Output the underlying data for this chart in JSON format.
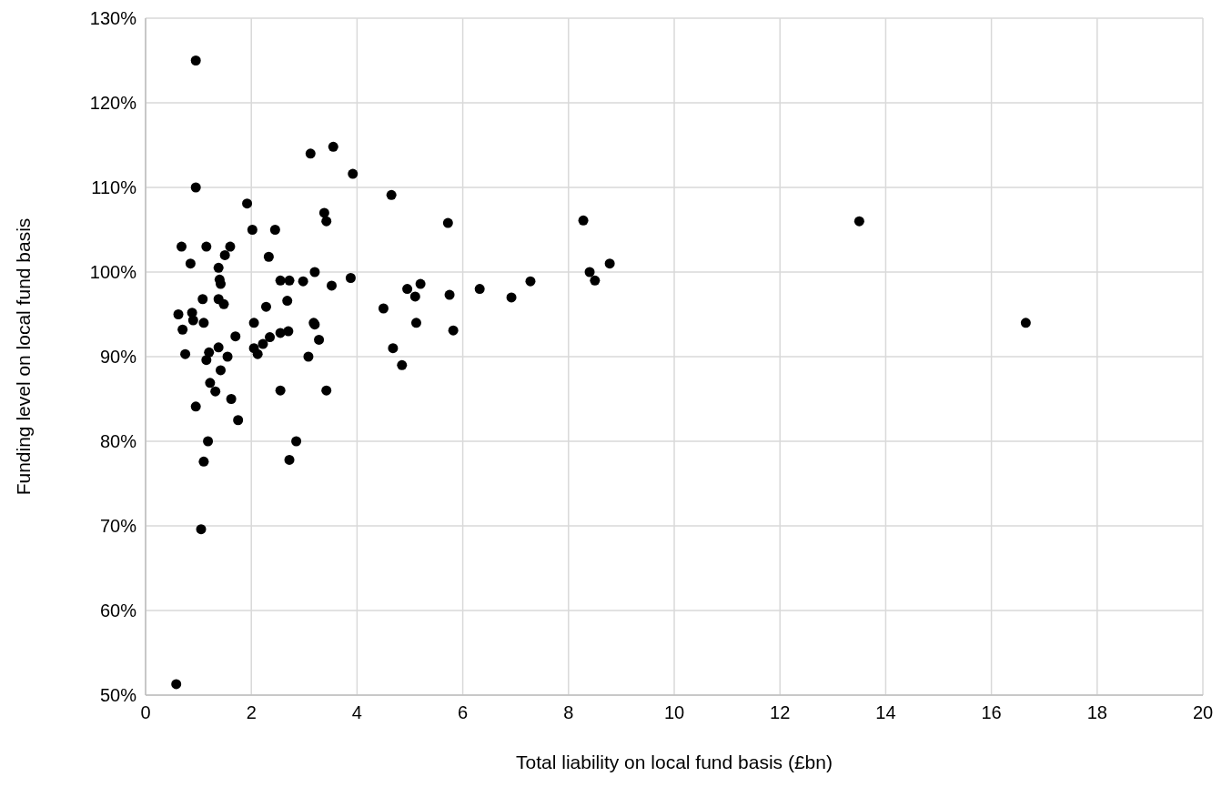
{
  "chart_data": {
    "type": "scatter",
    "xlabel": "Total liability on local fund basis (£bn)",
    "ylabel": "Funding level on local fund basis",
    "xlim": [
      0,
      20
    ],
    "xticks": [
      0,
      2,
      4,
      6,
      8,
      10,
      12,
      14,
      16,
      18,
      20
    ],
    "ylim": [
      50,
      130
    ],
    "yticks": [
      {
        "value": 50,
        "label": "50%"
      },
      {
        "value": 60,
        "label": "60%"
      },
      {
        "value": 70,
        "label": "70%"
      },
      {
        "value": 80,
        "label": "80%"
      },
      {
        "value": 90,
        "label": "90%"
      },
      {
        "value": 100,
        "label": "100%"
      },
      {
        "value": 110,
        "label": "110%"
      },
      {
        "value": 120,
        "label": "120%"
      },
      {
        "value": 130,
        "label": "130%"
      }
    ],
    "grid": true,
    "marker": "circle",
    "series": [
      {
        "color": "#000000",
        "x": [
          0.58,
          0.62,
          0.68,
          0.7,
          0.75,
          0.85,
          0.88,
          0.9,
          0.95,
          0.95,
          0.95,
          1.05,
          1.08,
          1.1,
          1.1,
          1.15,
          1.15,
          1.18,
          1.2,
          1.22,
          1.32,
          1.38,
          1.38,
          1.38,
          1.4,
          1.42,
          1.42,
          1.48,
          1.5,
          1.55,
          1.6,
          1.62,
          1.7,
          1.75,
          1.92,
          2.02,
          2.05,
          2.05,
          2.12,
          2.22,
          2.28,
          2.33,
          2.35,
          2.45,
          2.55,
          2.55,
          2.55,
          2.68,
          2.7,
          2.72,
          2.72,
          2.85,
          2.98,
          3.08,
          3.12,
          3.18,
          3.2,
          3.2,
          3.28,
          3.38,
          3.42,
          3.42,
          3.52,
          3.55,
          3.88,
          3.92,
          4.5,
          4.65,
          4.68,
          4.85,
          4.95,
          5.1,
          5.12,
          5.2,
          5.72,
          5.75,
          5.82,
          6.32,
          6.92,
          7.28,
          8.28,
          8.4,
          8.5,
          8.78,
          13.5,
          16.65
        ],
        "values": [
          51.3,
          95,
          103,
          93.2,
          90.3,
          101,
          95.2,
          94.3,
          125,
          110,
          84.1,
          69.6,
          96.8,
          77.6,
          94,
          89.6,
          103,
          80,
          90.5,
          86.9,
          85.9,
          100.5,
          96.8,
          91.1,
          99.1,
          98.6,
          88.4,
          96.2,
          102,
          90,
          103,
          85,
          92.4,
          82.5,
          108.1,
          105,
          94,
          91,
          90.3,
          91.5,
          95.9,
          101.8,
          92.3,
          105,
          99,
          92.8,
          86,
          96.6,
          93,
          77.8,
          99,
          80,
          98.9,
          90,
          114,
          94,
          100,
          93.8,
          92,
          107,
          106,
          86,
          98.4,
          114.8,
          99.3,
          111.6,
          95.7,
          109.1,
          91,
          89,
          98,
          97.1,
          94,
          98.6,
          105.8,
          97.3,
          93.1,
          98,
          97,
          98.9,
          106.1,
          100,
          99,
          101,
          106,
          94
        ]
      }
    ]
  }
}
